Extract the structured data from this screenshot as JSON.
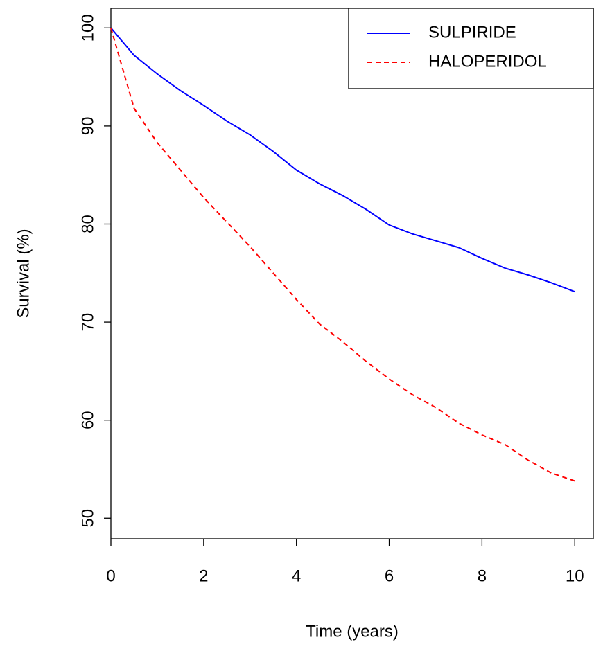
{
  "chart_data": {
    "type": "line",
    "xlabel": "Time (years)",
    "ylabel": "Survival (%)",
    "x": [
      0,
      0.5,
      1,
      1.5,
      2,
      2.5,
      3,
      3.5,
      4,
      4.5,
      5,
      5.5,
      6,
      6.5,
      7,
      7.5,
      8,
      8.5,
      9,
      9.5,
      10
    ],
    "series": [
      {
        "name": "SULPIRIDE",
        "color": "#0000ff",
        "linestyle": "solid",
        "values": [
          100,
          97.2,
          95.3,
          93.6,
          92.1,
          90.5,
          89.1,
          87.4,
          85.5,
          84.1,
          82.9,
          81.5,
          79.9,
          79.0,
          78.3,
          77.6,
          76.5,
          75.5,
          74.8,
          74.0,
          73.1
        ]
      },
      {
        "name": "HALOPERIDOL",
        "color": "#ff0000",
        "linestyle": "dashed",
        "values": [
          100,
          91.8,
          88.3,
          85.5,
          82.7,
          80.2,
          77.7,
          75.0,
          72.3,
          69.8,
          68.0,
          66.0,
          64.2,
          62.6,
          61.3,
          59.7,
          58.5,
          57.5,
          55.9,
          54.6,
          53.8
        ]
      }
    ],
    "xlim": [
      0,
      10.4
    ],
    "xticks": [
      0,
      2,
      4,
      6,
      8,
      10
    ],
    "ylim": [
      47.9,
      102
    ],
    "yticks": [
      50,
      60,
      70,
      80,
      90,
      100
    ],
    "legend": "top-right",
    "grid": false
  }
}
